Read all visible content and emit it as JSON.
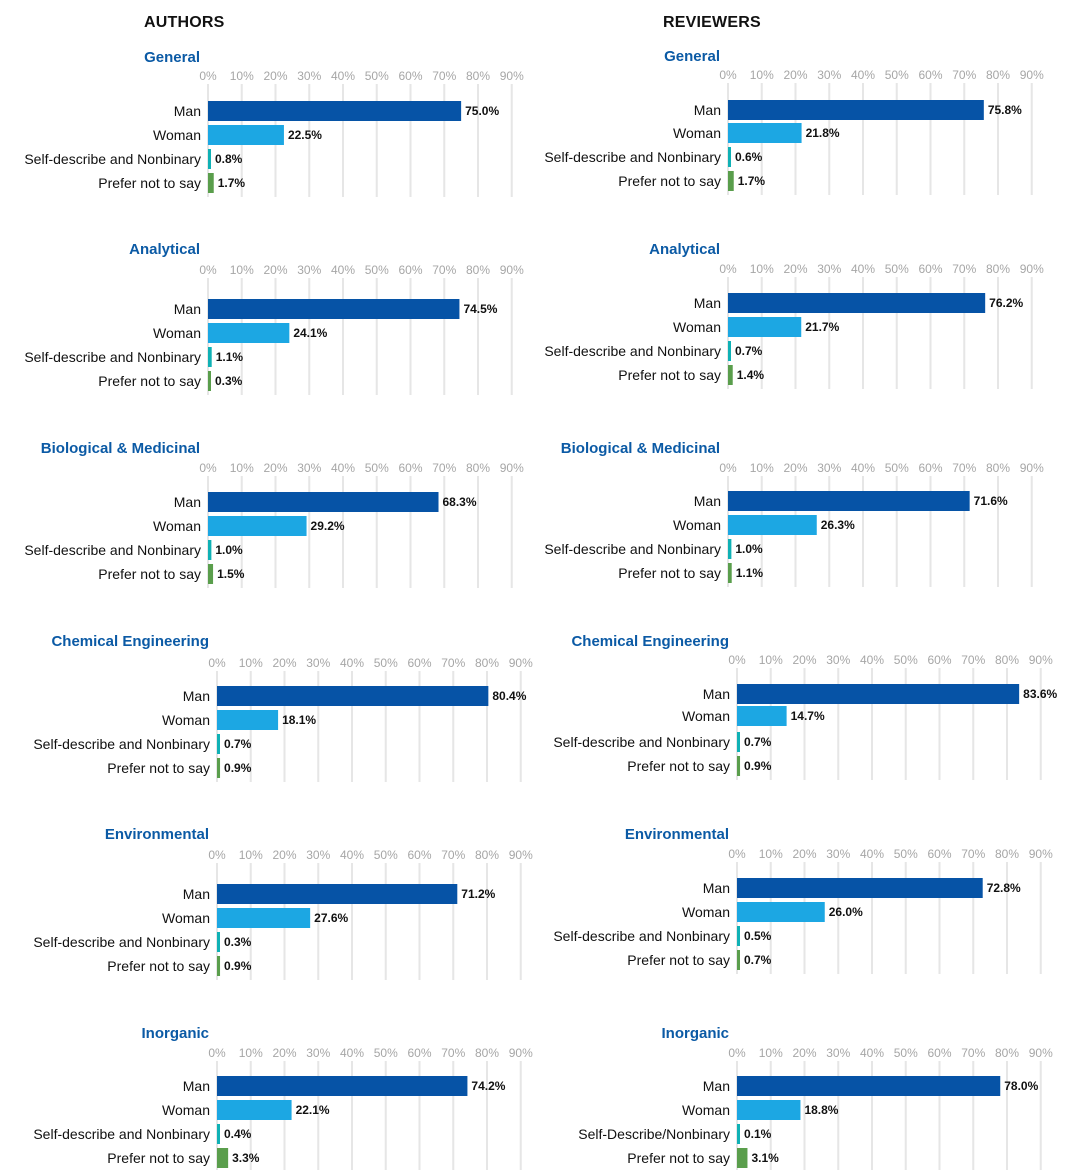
{
  "headers": {
    "authors": "AUTHORS",
    "reviewers": "REVIEWERS"
  },
  "colors": {
    "Man": "#0653a6",
    "Woman": "#1ca7e3",
    "Self-describe and Nonbinary": "#0fb1b5",
    "Self-Describe/Nonbinary": "#0fb1b5",
    "Prefer not to say": "#5a9e4c",
    "title": "#0b5aa5",
    "grid": "#e6e6e6"
  },
  "chart_data": [
    {
      "type": "bar",
      "group": "AUTHORS",
      "title": "General",
      "categories": [
        "Man",
        "Woman",
        "Self-describe and Nonbinary",
        "Prefer not to say"
      ],
      "values": [
        75.0,
        22.5,
        0.8,
        1.7
      ],
      "labels": [
        "75.0%",
        "22.5%",
        "0.8%",
        "1.7%"
      ],
      "xticks": [
        "0%",
        "10%",
        "20%",
        "30%",
        "40%",
        "50%",
        "60%",
        "70%",
        "80%",
        "90%"
      ],
      "xlim": [
        0,
        90
      ]
    },
    {
      "type": "bar",
      "group": "REVIEWERS",
      "title": "General",
      "categories": [
        "Man",
        "Woman",
        "Self-describe and Nonbinary",
        "Prefer not to say"
      ],
      "values": [
        75.8,
        21.8,
        0.6,
        1.7
      ],
      "labels": [
        "75.8%",
        "21.8%",
        "0.6%",
        "1.7%"
      ],
      "xticks": [
        "0%",
        "10%",
        "20%",
        "30%",
        "40%",
        "50%",
        "60%",
        "70%",
        "80%",
        "90%"
      ],
      "xlim": [
        0,
        90
      ]
    },
    {
      "type": "bar",
      "group": "AUTHORS",
      "title": "Analytical",
      "categories": [
        "Man",
        "Woman",
        "Self-describe and Nonbinary",
        "Prefer not to say"
      ],
      "values": [
        74.5,
        24.1,
        1.1,
        0.3
      ],
      "labels": [
        "74.5%",
        "24.1%",
        "1.1%",
        "0.3%"
      ],
      "xticks": [
        "0%",
        "10%",
        "20%",
        "30%",
        "40%",
        "50%",
        "60%",
        "70%",
        "80%",
        "90%"
      ],
      "xlim": [
        0,
        90
      ]
    },
    {
      "type": "bar",
      "group": "REVIEWERS",
      "title": "Analytical",
      "categories": [
        "Man",
        "Woman",
        "Self-describe and Nonbinary",
        "Prefer not to say"
      ],
      "values": [
        76.2,
        21.7,
        0.7,
        1.4
      ],
      "labels": [
        "76.2%",
        "21.7%",
        "0.7%",
        "1.4%"
      ],
      "xticks": [
        "0%",
        "10%",
        "20%",
        "30%",
        "40%",
        "50%",
        "60%",
        "70%",
        "80%",
        "90%"
      ],
      "xlim": [
        0,
        90
      ]
    },
    {
      "type": "bar",
      "group": "AUTHORS",
      "title": "Biological & Medicinal",
      "categories": [
        "Man",
        "Woman",
        "Self-describe and Nonbinary",
        "Prefer not to say"
      ],
      "values": [
        68.3,
        29.2,
        1.0,
        1.5
      ],
      "labels": [
        "68.3%",
        "29.2%",
        "1.0%",
        "1.5%"
      ],
      "xticks": [
        "0%",
        "10%",
        "20%",
        "30%",
        "40%",
        "50%",
        "60%",
        "70%",
        "80%",
        "90%"
      ],
      "xlim": [
        0,
        90
      ]
    },
    {
      "type": "bar",
      "group": "REVIEWERS",
      "title": "Biological & Medicinal",
      "categories": [
        "Man",
        "Woman",
        "Self-describe and Nonbinary",
        "Prefer not to say"
      ],
      "values": [
        71.6,
        26.3,
        1.0,
        1.1
      ],
      "labels": [
        "71.6%",
        "26.3%",
        "1.0%",
        "1.1%"
      ],
      "xticks": [
        "0%",
        "10%",
        "20%",
        "30%",
        "40%",
        "50%",
        "60%",
        "70%",
        "80%",
        "90%"
      ],
      "xlim": [
        0,
        90
      ]
    },
    {
      "type": "bar",
      "group": "AUTHORS",
      "title": "Chemical Engineering",
      "categories": [
        "Man",
        "Woman",
        "Self-describe and Nonbinary",
        "Prefer not to say"
      ],
      "values": [
        80.4,
        18.1,
        0.7,
        0.9
      ],
      "labels": [
        "80.4%",
        "18.1%",
        "0.7%",
        "0.9%"
      ],
      "xticks": [
        "0%",
        "10%",
        "20%",
        "30%",
        "40%",
        "50%",
        "60%",
        "70%",
        "80%",
        "90%"
      ],
      "xlim": [
        0,
        90
      ]
    },
    {
      "type": "bar",
      "group": "REVIEWERS",
      "title": "Chemical Engineering",
      "categories": [
        "Man",
        "Woman",
        "Self-describe and Nonbinary",
        "Prefer not to say"
      ],
      "values": [
        83.6,
        14.7,
        0.7,
        0.9
      ],
      "labels": [
        "83.6%",
        "14.7%",
        "0.7%",
        "0.9%"
      ],
      "xticks": [
        "0%",
        "10%",
        "20%",
        "30%",
        "40%",
        "50%",
        "60%",
        "70%",
        "80%",
        "90%"
      ],
      "xlim": [
        0,
        90
      ]
    },
    {
      "type": "bar",
      "group": "AUTHORS",
      "title": "Environmental",
      "categories": [
        "Man",
        "Woman",
        "Self-describe and Nonbinary",
        "Prefer not to say"
      ],
      "values": [
        71.2,
        27.6,
        0.3,
        0.9
      ],
      "labels": [
        "71.2%",
        "27.6%",
        "0.3%",
        "0.9%"
      ],
      "xticks": [
        "0%",
        "10%",
        "20%",
        "30%",
        "40%",
        "50%",
        "60%",
        "70%",
        "80%",
        "90%"
      ],
      "xlim": [
        0,
        90
      ]
    },
    {
      "type": "bar",
      "group": "REVIEWERS",
      "title": "Environmental",
      "categories": [
        "Man",
        "Woman",
        "Self-describe and Nonbinary",
        "Prefer not to say"
      ],
      "values": [
        72.8,
        26.0,
        0.5,
        0.7
      ],
      "labels": [
        "72.8%",
        "26.0%",
        "0.5%",
        "0.7%"
      ],
      "xticks": [
        "0%",
        "10%",
        "20%",
        "30%",
        "40%",
        "50%",
        "60%",
        "70%",
        "80%",
        "90%"
      ],
      "xlim": [
        0,
        90
      ]
    },
    {
      "type": "bar",
      "group": "AUTHORS",
      "title": "Inorganic",
      "categories": [
        "Man",
        "Woman",
        "Self-describe and Nonbinary",
        "Prefer not to say"
      ],
      "values": [
        74.2,
        22.1,
        0.4,
        3.3
      ],
      "labels": [
        "74.2%",
        "22.1%",
        "0.4%",
        "3.3%"
      ],
      "xticks": [
        "0%",
        "10%",
        "20%",
        "30%",
        "40%",
        "50%",
        "60%",
        "70%",
        "80%",
        "90%"
      ],
      "xlim": [
        0,
        90
      ]
    },
    {
      "type": "bar",
      "group": "REVIEWERS",
      "title": "Inorganic",
      "categories": [
        "Man",
        "Woman",
        "Self-Describe/Nonbinary",
        "Prefer not to say"
      ],
      "values": [
        78.0,
        18.8,
        0.1,
        3.1
      ],
      "labels": [
        "78.0%",
        "18.8%",
        "0.1%",
        "3.1%"
      ],
      "xticks": [
        "0%",
        "10%",
        "20%",
        "30%",
        "40%",
        "50%",
        "60%",
        "70%",
        "80%",
        "90%"
      ],
      "xlim": [
        0,
        90
      ]
    }
  ]
}
